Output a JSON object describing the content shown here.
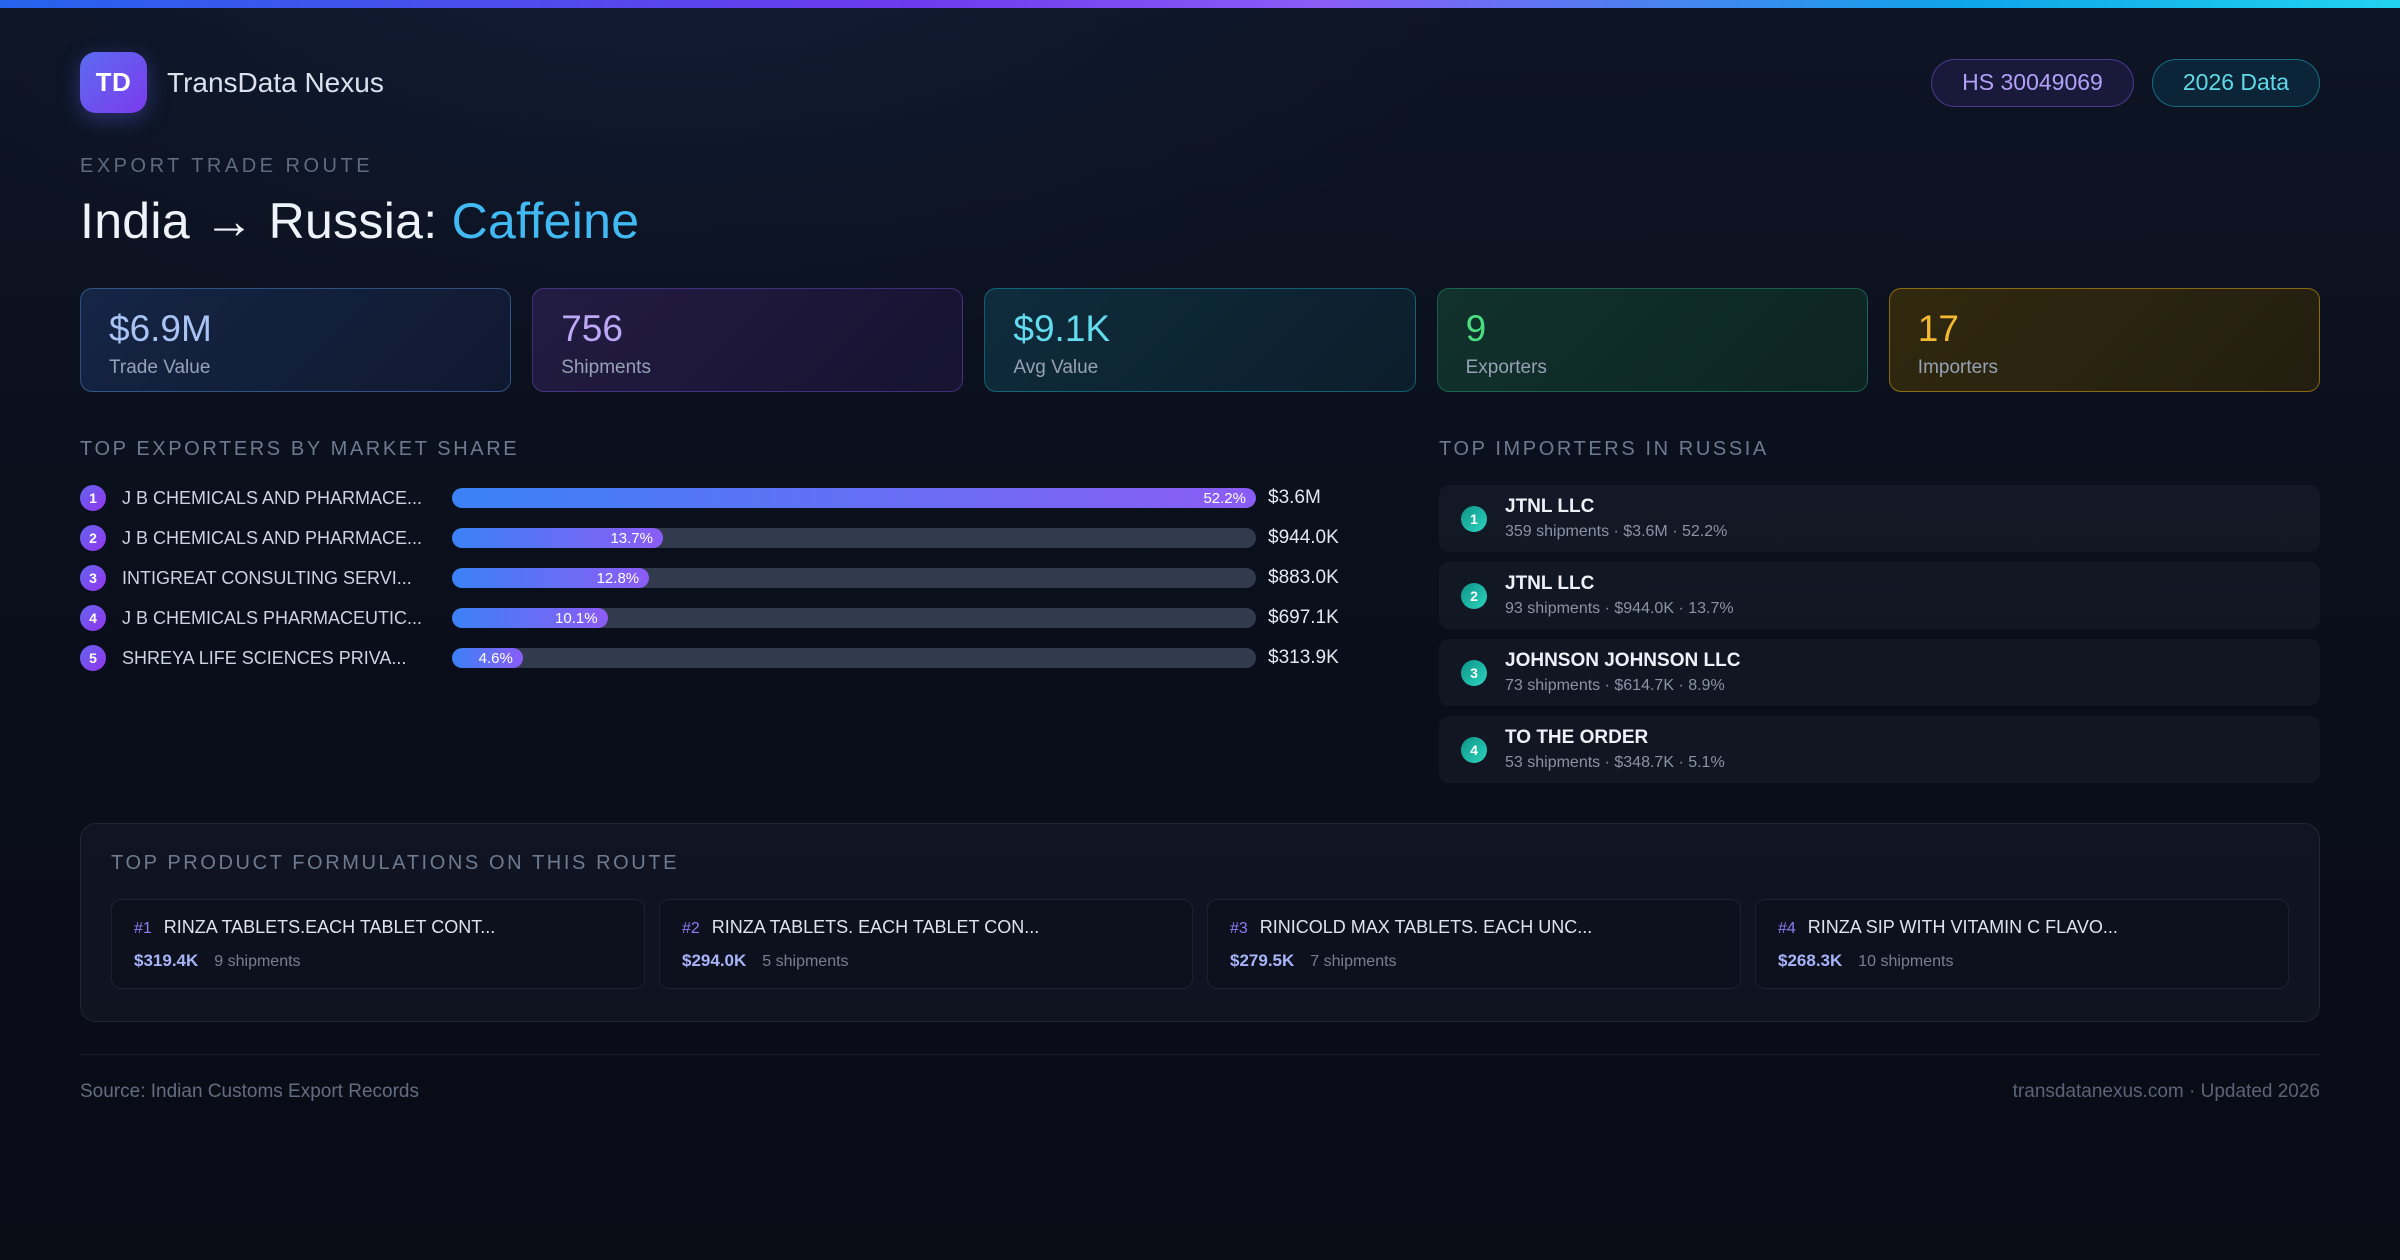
{
  "colors": {
    "accent-cyan": "#62dbef",
    "accent-green": "#4ade80",
    "accent-amber": "#f5b831",
    "title-highlight": "#41b9f3",
    "bar-gradient-start": "#3b82f6",
    "bar-gradient-end": "#8b5cf6"
  },
  "header": {
    "logo_text": "TD",
    "app_name": "TransData Nexus",
    "badges": [
      {
        "label": "HS 30049069"
      },
      {
        "label": "2026 Data"
      }
    ]
  },
  "hero": {
    "eyebrow": "EXPORT TRADE ROUTE",
    "title_main": "India → Russia:",
    "title_highlight": "Caffeine"
  },
  "stats": [
    {
      "value": "$6.9M",
      "label": "Trade Value"
    },
    {
      "value": "756",
      "label": "Shipments"
    },
    {
      "value": "$9.1K",
      "label": "Avg Value"
    },
    {
      "value": "9",
      "label": "Exporters"
    },
    {
      "value": "17",
      "label": "Importers"
    }
  ],
  "exporters": {
    "heading": "TOP EXPORTERS BY MARKET SHARE",
    "items": [
      {
        "rank": "1",
        "name": "J B CHEMICALS AND PHARMACE...",
        "share_pct": 52.2,
        "share_label": "52.2%",
        "value": "$3.6M"
      },
      {
        "rank": "2",
        "name": "J B CHEMICALS AND PHARMACE...",
        "share_pct": 13.7,
        "share_label": "13.7%",
        "value": "$944.0K"
      },
      {
        "rank": "3",
        "name": "INTIGREAT CONSULTING SERVI...",
        "share_pct": 12.8,
        "share_label": "12.8%",
        "value": "$883.0K"
      },
      {
        "rank": "4",
        "name": "J B CHEMICALS PHARMACEUTIC...",
        "share_pct": 10.1,
        "share_label": "10.1%",
        "value": "$697.1K"
      },
      {
        "rank": "5",
        "name": "SHREYA LIFE SCIENCES PRIVA...",
        "share_pct": 4.6,
        "share_label": "4.6%",
        "value": "$313.9K"
      }
    ]
  },
  "importers": {
    "heading": "TOP IMPORTERS IN RUSSIA",
    "items": [
      {
        "rank": "1",
        "name": "JTNL LLC",
        "details": "359 shipments · $3.6M · 52.2%"
      },
      {
        "rank": "2",
        "name": "JTNL LLC",
        "details": "93 shipments · $944.0K · 13.7%"
      },
      {
        "rank": "3",
        "name": "JOHNSON JOHNSON LLC",
        "details": "73 shipments · $614.7K · 8.9%"
      },
      {
        "rank": "4",
        "name": "TO THE ORDER",
        "details": "53 shipments · $348.7K · 5.1%"
      }
    ]
  },
  "products": {
    "heading": "TOP PRODUCT FORMULATIONS ON THIS ROUTE",
    "items": [
      {
        "rank": "#1",
        "name": "RINZA TABLETS.EACH TABLET CONT...",
        "value": "$319.4K",
        "shipments": "9 shipments"
      },
      {
        "rank": "#2",
        "name": "RINZA TABLETS. EACH TABLET CON...",
        "value": "$294.0K",
        "shipments": "5 shipments"
      },
      {
        "rank": "#3",
        "name": "RINICOLD MAX TABLETS. EACH UNC...",
        "value": "$279.5K",
        "shipments": "7 shipments"
      },
      {
        "rank": "#4",
        "name": "RINZA SIP WITH VITAMIN C FLAVO...",
        "value": "$268.3K",
        "shipments": "10 shipments"
      }
    ]
  },
  "footer": {
    "source": "Source: Indian Customs Export Records",
    "site": "transdatanexus.com · Updated 2026"
  }
}
